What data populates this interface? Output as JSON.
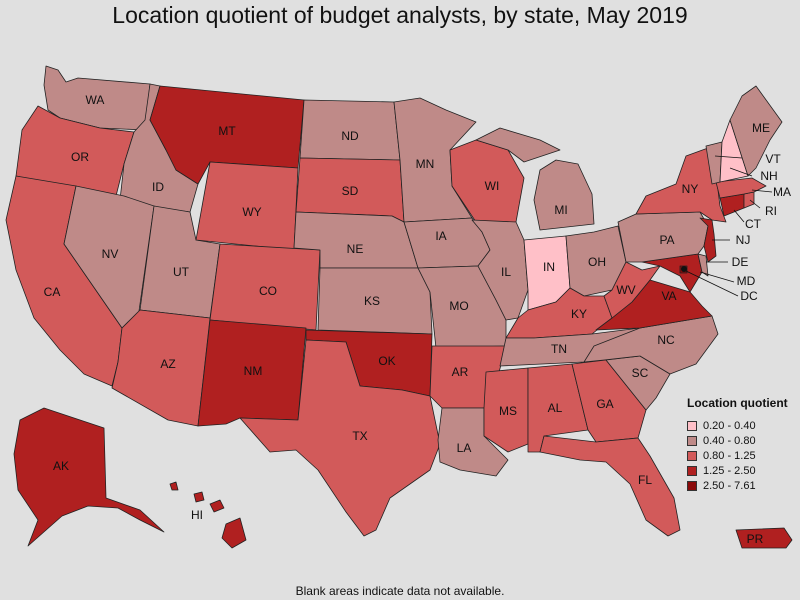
{
  "title": "Location quotient of budget analysts, by state, May 2019",
  "footnote": "Blank areas indicate data not available.",
  "legend": {
    "title": "Location quotient",
    "bins": [
      {
        "label": "0.20 - 0.40",
        "color": "#ffc0c8"
      },
      {
        "label": "0.40 - 0.80",
        "color": "#bf8a88"
      },
      {
        "label": "0.80 - 1.25",
        "color": "#d25a5a"
      },
      {
        "label": "1.25 - 2.50",
        "color": "#b02020"
      },
      {
        "label": "2.50 - 7.61",
        "color": "#8b0a0a"
      }
    ]
  },
  "states": [
    {
      "abbr": "WA",
      "bin": 1
    },
    {
      "abbr": "OR",
      "bin": 2
    },
    {
      "abbr": "CA",
      "bin": 2
    },
    {
      "abbr": "ID",
      "bin": 1
    },
    {
      "abbr": "NV",
      "bin": 1
    },
    {
      "abbr": "UT",
      "bin": 1
    },
    {
      "abbr": "AZ",
      "bin": 2
    },
    {
      "abbr": "MT",
      "bin": 3
    },
    {
      "abbr": "WY",
      "bin": 2
    },
    {
      "abbr": "CO",
      "bin": 2
    },
    {
      "abbr": "NM",
      "bin": 3
    },
    {
      "abbr": "ND",
      "bin": 1
    },
    {
      "abbr": "SD",
      "bin": 2
    },
    {
      "abbr": "NE",
      "bin": 1
    },
    {
      "abbr": "KS",
      "bin": 1
    },
    {
      "abbr": "OK",
      "bin": 3
    },
    {
      "abbr": "TX",
      "bin": 2
    },
    {
      "abbr": "MN",
      "bin": 1
    },
    {
      "abbr": "IA",
      "bin": 1
    },
    {
      "abbr": "MO",
      "bin": 1
    },
    {
      "abbr": "AR",
      "bin": 2
    },
    {
      "abbr": "LA",
      "bin": 1
    },
    {
      "abbr": "WI",
      "bin": 2
    },
    {
      "abbr": "IL",
      "bin": 1
    },
    {
      "abbr": "MI",
      "bin": 1
    },
    {
      "abbr": "IN",
      "bin": 0
    },
    {
      "abbr": "OH",
      "bin": 1
    },
    {
      "abbr": "KY",
      "bin": 2
    },
    {
      "abbr": "TN",
      "bin": 1
    },
    {
      "abbr": "MS",
      "bin": 2
    },
    {
      "abbr": "AL",
      "bin": 2
    },
    {
      "abbr": "GA",
      "bin": 2
    },
    {
      "abbr": "FL",
      "bin": 2
    },
    {
      "abbr": "SC",
      "bin": 1
    },
    {
      "abbr": "NC",
      "bin": 1
    },
    {
      "abbr": "VA",
      "bin": 3
    },
    {
      "abbr": "WV",
      "bin": 2
    },
    {
      "abbr": "MD",
      "bin": 3
    },
    {
      "abbr": "DE",
      "bin": 1
    },
    {
      "abbr": "DC",
      "bin": 4
    },
    {
      "abbr": "PA",
      "bin": 1
    },
    {
      "abbr": "NJ",
      "bin": 3
    },
    {
      "abbr": "NY",
      "bin": 2
    },
    {
      "abbr": "CT",
      "bin": 3
    },
    {
      "abbr": "RI",
      "bin": 2
    },
    {
      "abbr": "MA",
      "bin": 2
    },
    {
      "abbr": "VT",
      "bin": 1
    },
    {
      "abbr": "NH",
      "bin": 0
    },
    {
      "abbr": "ME",
      "bin": 1
    },
    {
      "abbr": "AK",
      "bin": 3
    },
    {
      "abbr": "HI",
      "bin": 3
    },
    {
      "abbr": "PR",
      "bin": 3
    }
  ]
}
